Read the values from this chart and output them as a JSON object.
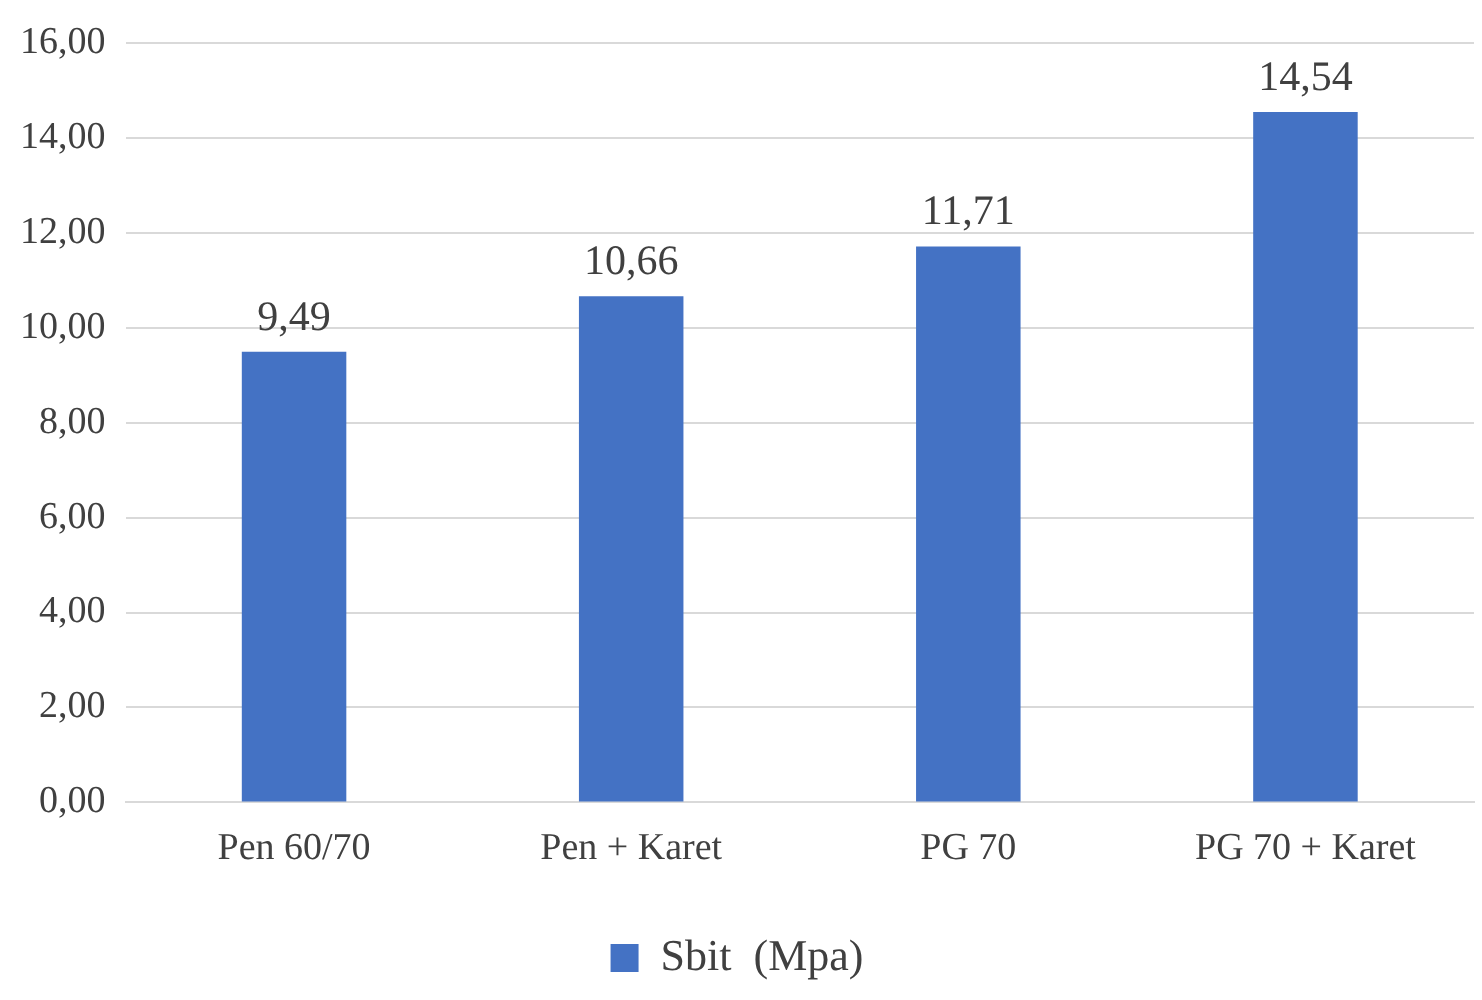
{
  "chart_data": {
    "type": "bar",
    "categories": [
      "Pen 60/70",
      "Pen + Karet",
      "PG 70",
      "PG 70 + Karet"
    ],
    "series": [
      {
        "name": "Sbit  (Mpa)",
        "color": "#4472c4",
        "values": [
          9.49,
          10.66,
          11.71,
          14.54
        ],
        "value_labels": [
          "9,49",
          "10,66",
          "11,71",
          "14,54"
        ]
      }
    ],
    "ylim": [
      0,
      16
    ],
    "yticks": [
      {
        "value": 0,
        "label": "0,00"
      },
      {
        "value": 2,
        "label": "2,00"
      },
      {
        "value": 4,
        "label": "4,00"
      },
      {
        "value": 6,
        "label": "6,00"
      },
      {
        "value": 8,
        "label": "8,00"
      },
      {
        "value": 10,
        "label": "10,00"
      },
      {
        "value": 12,
        "label": "12,00"
      },
      {
        "value": 14,
        "label": "14,00"
      },
      {
        "value": 16,
        "label": "16,00"
      }
    ],
    "grid": "y",
    "legend": "bottom"
  }
}
